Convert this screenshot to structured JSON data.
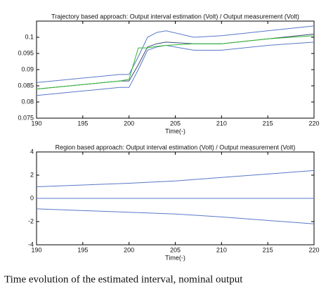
{
  "chart_data": [
    {
      "type": "line",
      "title": "Trajectory based approach: Output interval estimation (Volt) / Output measurement (Volt)",
      "x_label": "Time(-)",
      "x": [
        190,
        199,
        200,
        201,
        202,
        203,
        204,
        207,
        210,
        215,
        220
      ],
      "series": [
        {
          "color": "#5a78c8",
          "values": [
            0.086,
            0.0885,
            0.0885,
            0.094,
            0.1,
            0.1015,
            0.102,
            0.1,
            0.1005,
            0.102,
            0.1035
          ]
        },
        {
          "color": "#3c4a78",
          "values": [
            0.084,
            0.0865,
            0.0865,
            0.0915,
            0.097,
            0.098,
            0.0985,
            0.098,
            0.098,
            0.0995,
            0.101
          ]
        },
        {
          "color": "#5a78c8",
          "values": [
            0.082,
            0.0845,
            0.0845,
            0.09,
            0.096,
            0.097,
            0.0975,
            0.096,
            0.096,
            0.0975,
            0.0985
          ]
        },
        {
          "color": "#33bb33",
          "values": [
            0.084,
            0.0865,
            0.087,
            0.0967,
            0.0967,
            0.0972,
            0.0975,
            0.098,
            0.098,
            0.0995,
            0.1005
          ]
        }
      ],
      "xlim": [
        190,
        220
      ],
      "xticks": [
        190,
        195,
        200,
        205,
        210,
        215,
        220
      ],
      "ylim": [
        0.075,
        0.105
      ],
      "yticks": [
        0.075,
        0.08,
        0.085,
        0.09,
        0.095,
        0.1
      ]
    },
    {
      "type": "line",
      "title": "Region based approach: Output interval estimation (Volt) / Output measurement (Volt)",
      "x_label": "Time(-)",
      "x": [
        190,
        195,
        200,
        205,
        210,
        215,
        220
      ],
      "series": [
        {
          "color": "#5a78c8",
          "values": [
            1.0,
            1.15,
            1.3,
            1.5,
            1.8,
            2.1,
            2.4
          ]
        },
        {
          "color": "#5a78c8",
          "values": [
            0,
            0,
            0,
            0,
            0,
            0,
            0
          ]
        },
        {
          "color": "#5a78c8",
          "values": [
            -0.9,
            -1.05,
            -1.2,
            -1.35,
            -1.6,
            -1.9,
            -2.2
          ]
        }
      ],
      "xlim": [
        190,
        220
      ],
      "xticks": [
        190,
        195,
        200,
        205,
        210,
        215,
        220
      ],
      "ylim": [
        -4,
        4
      ],
      "yticks": [
        -4,
        -2,
        0,
        2,
        4
      ]
    }
  ],
  "caption": "Time evolution of the estimated interval, nominal output"
}
